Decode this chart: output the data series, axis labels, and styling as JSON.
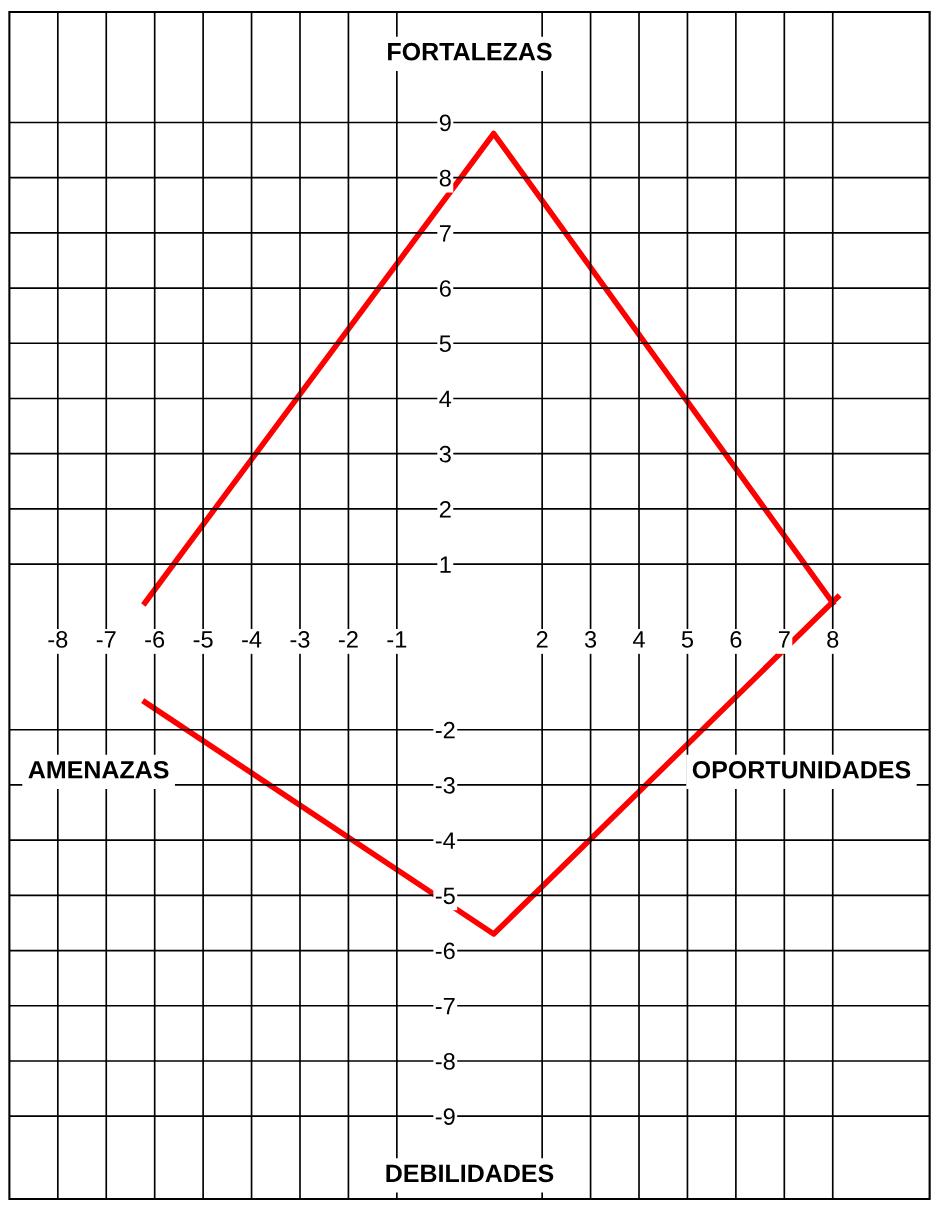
{
  "chart_data": {
    "type": "line",
    "annotations": [
      "FORTALEZAS",
      "AMENAZAS",
      "OPORTUNIDADES",
      "DEBILIDADES"
    ],
    "series": [
      {
        "color": "#ff0000",
        "x": [
          -6.2,
          1,
          8
        ],
        "values": [
          0.3,
          8.8,
          0.3
        ]
      },
      {
        "color": "#ff0000",
        "x": [
          -6.2,
          1,
          8.1
        ],
        "values": [
          -1.5,
          -5.7,
          0.4
        ]
      }
    ],
    "xlim": [
      -9,
      10
    ],
    "ylim": [
      -10.5,
      11
    ],
    "xticks": [
      -8,
      -7,
      -6,
      -5,
      -4,
      -3,
      -2,
      -1,
      2,
      3,
      4,
      5,
      6,
      7,
      8
    ],
    "yticks": [
      -9,
      -8,
      -7,
      -6,
      -5,
      -4,
      -3,
      -2,
      1,
      2,
      3,
      4,
      5,
      6,
      7,
      8,
      9
    ],
    "grid": true,
    "legend": false,
    "marker": "none",
    "line_style": "solid"
  }
}
